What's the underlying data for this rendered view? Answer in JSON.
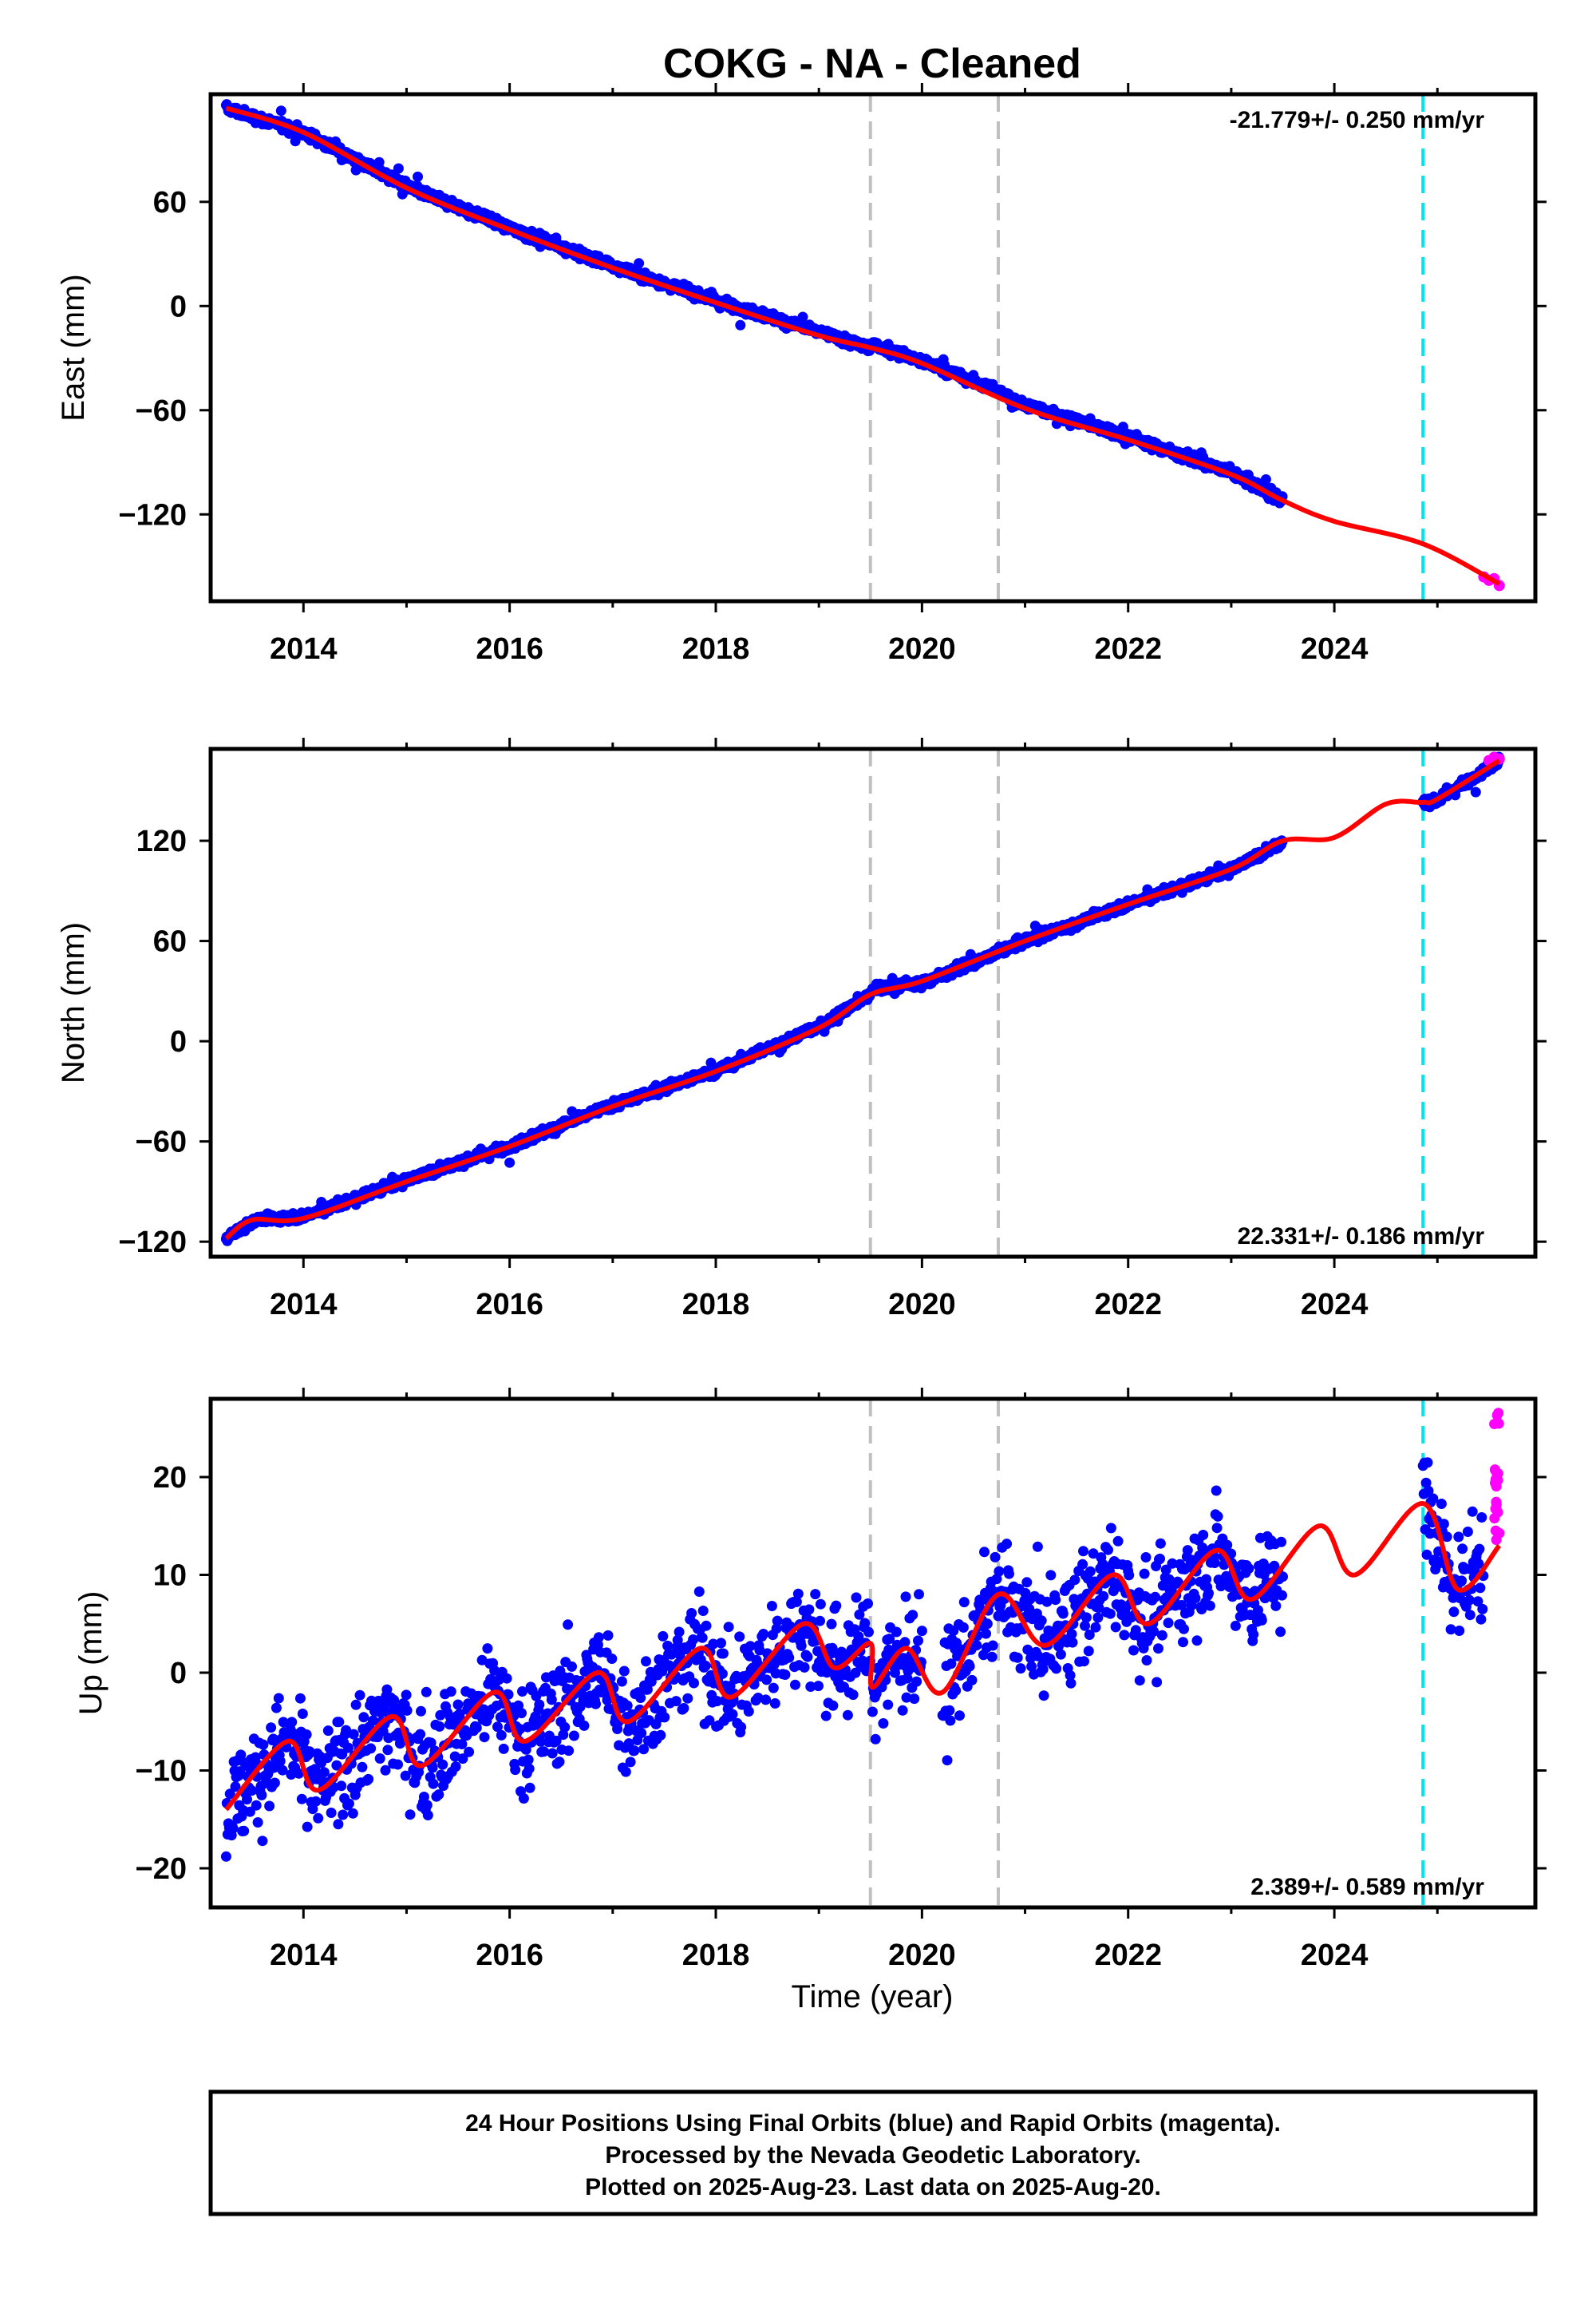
{
  "chart_data": {
    "title": "COKG  - NA - Cleaned",
    "type": "scatter",
    "xlabel": "Time (year)",
    "xlim": [
      2013.1,
      2025.95
    ],
    "xticks": [
      "2014",
      "2016",
      "2018",
      "2020",
      "2022",
      "2024"
    ],
    "colors": {
      "final_orbits": "#0000ff",
      "rapid_orbits": "#ff00ff",
      "model": "#ff0000",
      "equipment_change": "#c0c0c0",
      "other_event": "#00e5ee"
    },
    "vertical_lines": [
      {
        "x": 2019.5,
        "type": "gray-dashed"
      },
      {
        "x": 2020.74,
        "type": "gray-dashed"
      },
      {
        "x": 2024.86,
        "type": "cyan-dashed"
      }
    ],
    "panels": [
      {
        "ylabel": "East (mm)",
        "ylim": [
          -170,
          122
        ],
        "yticks": [
          "60",
          "0",
          "−60",
          "−120"
        ],
        "ytick_values": [
          60,
          0,
          -60,
          -120
        ],
        "rate": "-21.779+/- 0.250 mm/yr",
        "rate_position": "top-right",
        "segments": [
          {
            "x": [
              2013.25,
              2014,
              2015,
              2016,
              2017,
              2018,
              2019,
              2019.5
            ],
            "y": [
              114,
              100,
              69,
              45,
              23,
              3,
              -15,
              -24
            ]
          },
          {
            "x": [
              2019.52,
              2020,
              2020.74,
              2021,
              2022,
              2023,
              2023.5
            ],
            "y": [
              -22,
              -32,
              -49,
              -57,
              -75,
              -96,
              -112
            ]
          }
        ],
        "model": {
          "x": [
            2013.25,
            2014,
            2015,
            2016,
            2017,
            2018,
            2019,
            2019.5,
            2020,
            2021,
            2022,
            2023,
            2023.5,
            2024,
            2024.86,
            2025.6
          ],
          "y": [
            114,
            100,
            68,
            44,
            22,
            2,
            -17,
            -24,
            -33,
            -59,
            -77,
            -97,
            -112,
            -124,
            -137,
            -160
          ]
        },
        "rapid": {
          "x": [
            2025.45,
            2025.5,
            2025.55,
            2025.6
          ],
          "y": [
            -156,
            -158,
            -157,
            -161
          ]
        }
      },
      {
        "ylabel": "North (mm)",
        "ylim": [
          -129,
          175
        ],
        "yticks": [
          "120",
          "60",
          "0",
          "−60",
          "−120"
        ],
        "ytick_values": [
          120,
          60,
          0,
          -60,
          -120
        ],
        "rate": "22.331+/- 0.186 mm/yr",
        "rate_position": "bottom-right",
        "segments": [
          {
            "x": [
              2013.25,
              2013.5,
              2014,
              2015,
              2016,
              2017,
              2018,
              2019,
              2019.5
            ],
            "y": [
              -118,
              -107,
              -105,
              -83,
              -63,
              -38,
              -18,
              9,
              28
            ]
          },
          {
            "x": [
              2019.52,
              2020,
              2020.74,
              2021,
              2022,
              2023,
              2023.5
            ],
            "y": [
              32,
              35,
              53,
              60,
              82,
              103,
              119
            ]
          },
          {
            "x": [
              2024.86,
              2025,
              2025.6
            ],
            "y": [
              143,
              144,
              168
            ]
          }
        ],
        "model": {
          "x": [
            2013.25,
            2013.5,
            2014,
            2015,
            2016,
            2017,
            2018,
            2019,
            2019.5,
            2020,
            2021,
            2022,
            2023,
            2023.5,
            2024,
            2024.5,
            2024.86,
            2025,
            2025.6
          ],
          "y": [
            -118,
            -107,
            -106,
            -84,
            -63,
            -39,
            -18,
            8,
            28,
            36,
            60,
            82,
            103,
            120,
            122,
            142,
            143,
            145,
            168
          ]
        },
        "rapid": {
          "x": [
            2025.5,
            2025.55,
            2025.6
          ],
          "y": [
            168,
            170,
            169
          ]
        }
      },
      {
        "ylabel": "Up (mm)",
        "ylim": [
          -24,
          28
        ],
        "yticks": [
          "20",
          "10",
          "0",
          "−10",
          "−20"
        ],
        "ytick_values": [
          20,
          10,
          0,
          -10,
          -20
        ],
        "rate": "2.389+/- 0.589 mm/yr",
        "rate_position": "bottom-right",
        "model_description": "linear trend plus annual and semi-annual seasonal terms with offsets",
        "model_knots": {
          "x": [
            2013.25,
            2013.85,
            2014.15,
            2014.85,
            2015.15,
            2015.85,
            2016.15,
            2016.85,
            2017.15,
            2017.85,
            2018.15,
            2018.85,
            2019.15,
            2019.5,
            2019.52,
            2019.85,
            2020.2,
            2020.74,
            2021.2,
            2021.85,
            2022.2,
            2022.85,
            2023.2,
            2023.85,
            2024.2,
            2024.86,
            2025.2,
            2025.6
          ],
          "y": [
            -14,
            -7,
            -12,
            -4.5,
            -9.5,
            -2,
            -7,
            0,
            -5,
            2.5,
            -2.5,
            5,
            0.5,
            3,
            -1.5,
            2.5,
            -2,
            8,
            2.8,
            10,
            5,
            12.5,
            7.5,
            15,
            10,
            17.3,
            8.5,
            13
          ]
        },
        "rapid": {
          "x": [
            2025.55,
            2025.57,
            2025.58,
            2025.6
          ],
          "y": [
            26.5,
            24,
            21,
            14
          ]
        }
      }
    ]
  },
  "footer": {
    "line1": "24 Hour Positions Using Final Orbits (blue) and Rapid Orbits (magenta).",
    "line2": "Processed by the Nevada Geodetic Laboratory.",
    "line3": "Plotted on 2025-Aug-23. Last data on 2025-Aug-20."
  }
}
